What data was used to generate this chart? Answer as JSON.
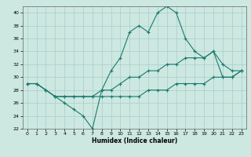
{
  "title": "",
  "xlabel": "Humidex (Indice chaleur)",
  "ylabel": "",
  "background_color": "#cce8e0",
  "grid_color": "#aacccc",
  "line_color": "#1a7a6e",
  "x": [
    0,
    1,
    2,
    3,
    4,
    5,
    6,
    7,
    8,
    9,
    10,
    11,
    12,
    13,
    14,
    15,
    16,
    17,
    18,
    19,
    20,
    21,
    22,
    23
  ],
  "y_max": [
    29,
    29,
    28,
    27,
    26,
    25,
    24,
    22,
    28,
    31,
    33,
    37,
    38,
    37,
    40,
    41,
    40,
    36,
    34,
    33,
    34,
    32,
    31,
    31
  ],
  "y_mean": [
    29,
    29,
    28,
    27,
    27,
    27,
    27,
    27,
    28,
    28,
    29,
    30,
    30,
    31,
    31,
    32,
    32,
    33,
    33,
    33,
    34,
    30,
    30,
    31
  ],
  "y_min": [
    29,
    29,
    28,
    27,
    27,
    27,
    27,
    27,
    27,
    27,
    27,
    27,
    27,
    28,
    28,
    28,
    29,
    29,
    29,
    29,
    30,
    30,
    30,
    31
  ],
  "ylim": [
    22,
    41
  ],
  "xlim": [
    -0.5,
    23.5
  ],
  "yticks": [
    22,
    24,
    26,
    28,
    30,
    32,
    34,
    36,
    38,
    40
  ],
  "xticks": [
    0,
    1,
    2,
    3,
    4,
    5,
    6,
    7,
    8,
    9,
    10,
    11,
    12,
    13,
    14,
    15,
    16,
    17,
    18,
    19,
    20,
    21,
    22,
    23
  ],
  "marker": "+",
  "markersize": 3,
  "linewidth": 0.8,
  "tick_fontsize": 4.5,
  "xlabel_fontsize": 5.5
}
